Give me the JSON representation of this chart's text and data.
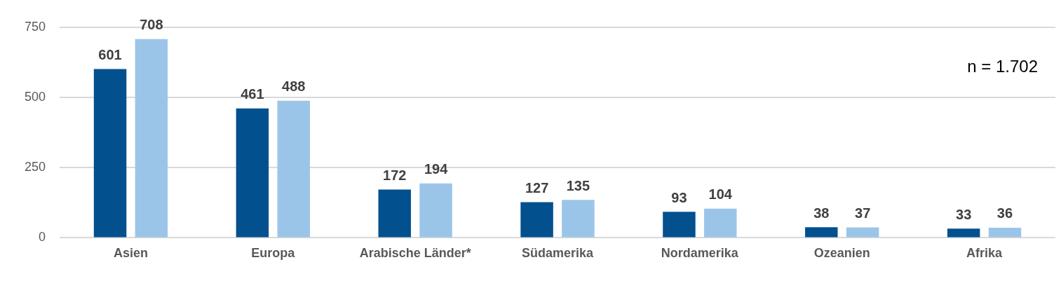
{
  "chart_data": {
    "type": "bar",
    "categories": [
      "Asien",
      "Europa",
      "Arabische Länder*",
      "Südamerika",
      "Nordamerika",
      "Ozeanien",
      "Afrika"
    ],
    "series": [
      {
        "color": "#03508f",
        "values": [
          601,
          461,
          172,
          127,
          93,
          38,
          33
        ]
      },
      {
        "color": "#9bc5e8",
        "values": [
          708,
          488,
          194,
          135,
          104,
          37,
          36
        ]
      }
    ],
    "ylim": [
      0,
      750
    ],
    "yticks": [
      0,
      250,
      500,
      750
    ],
    "grid": "y",
    "data_labels": true,
    "annotations": [
      "n = 1.702"
    ]
  }
}
